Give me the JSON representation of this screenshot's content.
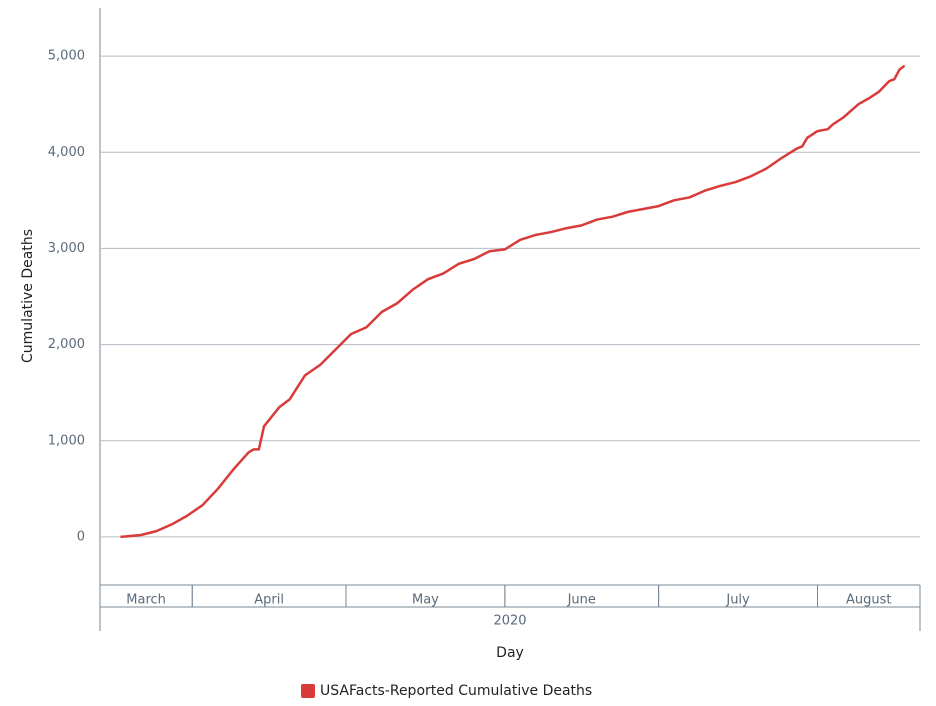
{
  "chart_data": {
    "type": "line",
    "ylabel": "Cumulative Deaths",
    "xlabel": "Day",
    "x_group_label": "2020",
    "xlim": [
      74,
      234
    ],
    "ylim": [
      -500,
      5500
    ],
    "yticks": [
      0,
      {
        "value": 1000,
        "label": "1,000"
      },
      {
        "value": 2000,
        "label": "2,000"
      },
      {
        "value": 3000,
        "label": "3,000"
      },
      {
        "value": 4000,
        "label": "4,000"
      },
      {
        "value": 5000,
        "label": "5,000"
      }
    ],
    "x_bands": [
      {
        "label": "March",
        "start": 74,
        "end": 92
      },
      {
        "label": "April",
        "start": 92,
        "end": 122
      },
      {
        "label": "May",
        "start": 122,
        "end": 153
      },
      {
        "label": "June",
        "start": 153,
        "end": 183
      },
      {
        "label": "July",
        "start": 183,
        "end": 214
      },
      {
        "label": "August",
        "start": 214,
        "end": 234
      }
    ],
    "grid": true,
    "x": [
      78,
      82,
      85,
      88,
      91,
      94,
      97,
      100,
      103,
      104,
      105,
      106,
      109,
      111,
      114,
      117,
      120,
      123,
      126,
      129,
      132,
      135,
      138,
      141,
      144,
      147,
      150,
      153,
      156,
      159,
      162,
      165,
      168,
      171,
      174,
      177,
      180,
      183,
      186,
      189,
      192,
      195,
      198,
      201,
      204,
      207,
      210,
      211,
      212,
      214,
      216,
      217,
      219,
      222,
      224,
      226,
      228,
      229,
      230,
      231
    ],
    "series": [
      {
        "name": "USAFacts-Reported Cumulative Deaths",
        "color": "#d93a3a",
        "values": [
          0,
          20,
          60,
          130,
          220,
          330,
          500,
          700,
          880,
          910,
          910,
          1150,
          1350,
          1430,
          1680,
          1790,
          1950,
          2110,
          2180,
          2340,
          2430,
          2570,
          2680,
          2740,
          2840,
          2890,
          2970,
          2990,
          3090,
          3140,
          3170,
          3210,
          3240,
          3300,
          3330,
          3380,
          3410,
          3440,
          3500,
          3530,
          3600,
          3650,
          3690,
          3750,
          3830,
          3940,
          4040,
          4060,
          4150,
          4220,
          4240,
          4290,
          4360,
          4500,
          4560,
          4630,
          4740,
          4760,
          4860,
          4900
        ]
      }
    ]
  }
}
